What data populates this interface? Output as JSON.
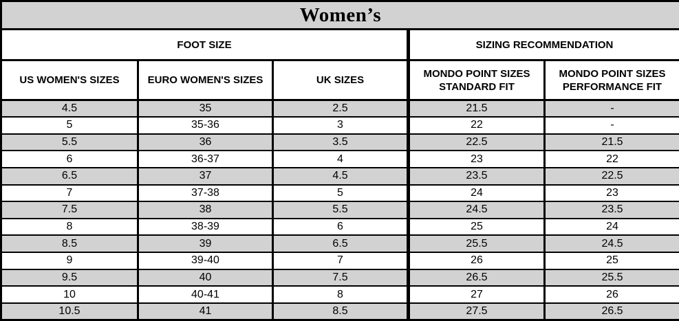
{
  "title": "Women’s",
  "colors": {
    "header_bg": "#d2d2d2",
    "row_alt_bg": "#d2d2d2",
    "row_bg": "#ffffff",
    "border": "#000000"
  },
  "table": {
    "section_headers": [
      {
        "label": "FOOT SIZE"
      },
      {
        "label": "SIZING RECOMMENDATION"
      }
    ],
    "columns": [
      "US WOMEN'S SIZES",
      "EURO WOMEN'S SIZES",
      "UK SIZES",
      "MONDO POINT SIZES STANDARD FIT",
      "MONDO POINT SIZES PERFORMANCE FIT"
    ],
    "rows": [
      [
        "4.5",
        "35",
        "2.5",
        "21.5",
        "-"
      ],
      [
        "5",
        "35-36",
        "3",
        "22",
        "-"
      ],
      [
        "5.5",
        "36",
        "3.5",
        "22.5",
        "21.5"
      ],
      [
        "6",
        "36-37",
        "4",
        "23",
        "22"
      ],
      [
        "6.5",
        "37",
        "4.5",
        "23.5",
        "22.5"
      ],
      [
        "7",
        "37-38",
        "5",
        "24",
        "23"
      ],
      [
        "7.5",
        "38",
        "5.5",
        "24.5",
        "23.5"
      ],
      [
        "8",
        "38-39",
        "6",
        "25",
        "24"
      ],
      [
        "8.5",
        "39",
        "6.5",
        "25.5",
        "24.5"
      ],
      [
        "9",
        "39-40",
        "7",
        "26",
        "25"
      ],
      [
        "9.5",
        "40",
        "7.5",
        "26.5",
        "25.5"
      ],
      [
        "10",
        "40-41",
        "8",
        "27",
        "26"
      ],
      [
        "10.5",
        "41",
        "8.5",
        "27.5",
        "26.5"
      ]
    ]
  }
}
